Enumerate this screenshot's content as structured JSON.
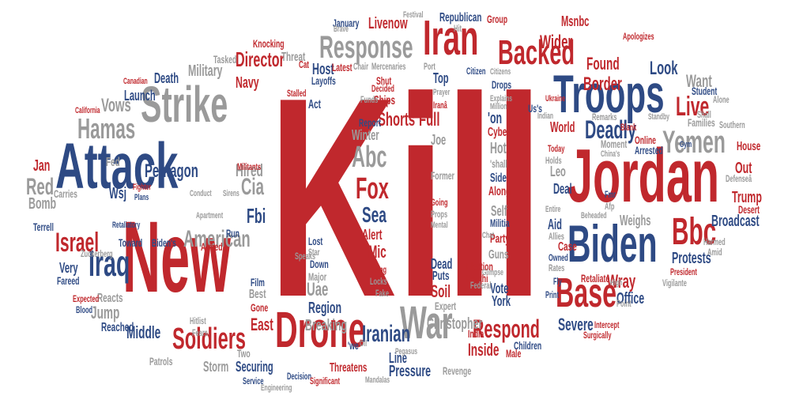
{
  "palette": {
    "red": "#c0282d",
    "blue": "#2e4a84",
    "gray": "#9a9a9a"
  },
  "words": [
    {
      "text": "Kill",
      "color": "r"
    },
    {
      "text": "Jordan",
      "color": "r"
    },
    {
      "text": "New",
      "color": "r"
    },
    {
      "text": "Attack",
      "color": "b"
    },
    {
      "text": "Troops",
      "color": "b"
    },
    {
      "text": "Biden",
      "color": "b"
    },
    {
      "text": "Drone",
      "color": "r"
    },
    {
      "text": "Strike",
      "color": "g"
    },
    {
      "text": "Iran",
      "color": "r"
    },
    {
      "text": "Backed",
      "color": "r"
    },
    {
      "text": "War",
      "color": "g"
    },
    {
      "text": "Response",
      "color": "g"
    },
    {
      "text": "Base",
      "color": "r"
    },
    {
      "text": "Yemen",
      "color": "g"
    },
    {
      "text": "Bbc",
      "color": "r"
    },
    {
      "text": "Iraq",
      "color": "b"
    },
    {
      "text": "Hamas",
      "color": "g"
    },
    {
      "text": "Israel",
      "color": "r"
    },
    {
      "text": "Soldiers",
      "color": "r"
    },
    {
      "text": "American",
      "color": "g"
    },
    {
      "text": "Fox",
      "color": "r"
    },
    {
      "text": "Abc",
      "color": "g"
    },
    {
      "text": "Border",
      "color": "r"
    },
    {
      "text": "Deadly",
      "color": "b"
    },
    {
      "text": "Live",
      "color": "r"
    },
    {
      "text": "Director",
      "color": "r"
    },
    {
      "text": "Pentagon",
      "color": "b"
    },
    {
      "text": "Vows",
      "color": "g"
    },
    {
      "text": "Respond",
      "color": "r"
    },
    {
      "text": "Iranian",
      "color": "b"
    },
    {
      "text": "Shorts",
      "color": "r"
    },
    {
      "text": "Full",
      "color": "r"
    },
    {
      "text": "Sea",
      "color": "b"
    },
    {
      "text": "Alert",
      "color": "r"
    },
    {
      "text": "Hired",
      "color": "g"
    },
    {
      "text": "Cia",
      "color": "g"
    },
    {
      "text": "Fbi",
      "color": "b"
    },
    {
      "text": "Look",
      "color": "b"
    },
    {
      "text": "Found",
      "color": "r"
    },
    {
      "text": "Want",
      "color": "g"
    },
    {
      "text": "Wider",
      "color": "r"
    },
    {
      "text": "Livenow",
      "color": "r"
    },
    {
      "text": "Red",
      "color": "g"
    },
    {
      "text": "Jan",
      "color": "r"
    },
    {
      "text": "Wsj",
      "color": "b"
    },
    {
      "text": "Middle",
      "color": "b"
    },
    {
      "text": "East",
      "color": "r"
    },
    {
      "text": "Severe",
      "color": "b"
    },
    {
      "text": "Inside",
      "color": "r"
    },
    {
      "text": "Navy",
      "color": "r"
    },
    {
      "text": "Military",
      "color": "g"
    },
    {
      "text": "Death",
      "color": "b"
    },
    {
      "text": "Launch",
      "color": "b"
    },
    {
      "text": "Host",
      "color": "b"
    },
    {
      "text": "Uae",
      "color": "g"
    },
    {
      "text": "Region",
      "color": "b"
    },
    {
      "text": "Breaking",
      "color": "g"
    },
    {
      "text": "Christopher",
      "color": "g"
    },
    {
      "text": "Pressure",
      "color": "b"
    },
    {
      "text": "Line",
      "color": "b"
    },
    {
      "text": "Mic",
      "color": "r"
    },
    {
      "text": "Soil",
      "color": "r"
    },
    {
      "text": "Vote",
      "color": "b"
    },
    {
      "text": "Wray",
      "color": "r"
    },
    {
      "text": "Office",
      "color": "b"
    },
    {
      "text": "Broadcast",
      "color": "b"
    },
    {
      "text": "Protests",
      "color": "b"
    },
    {
      "text": "Trump",
      "color": "r"
    },
    {
      "text": "Out",
      "color": "r"
    },
    {
      "text": "House",
      "color": "r"
    },
    {
      "text": "Aid",
      "color": "b"
    },
    {
      "text": "Weighs",
      "color": "g"
    },
    {
      "text": "Jump",
      "color": "g"
    },
    {
      "text": "Very",
      "color": "b"
    },
    {
      "text": "Reacts",
      "color": "g"
    },
    {
      "text": "Storm",
      "color": "g"
    },
    {
      "text": "Securing",
      "color": "b"
    },
    {
      "text": "Republican",
      "color": "b"
    },
    {
      "text": "Msnbc",
      "color": "r"
    },
    {
      "text": "Knocking",
      "color": "r"
    },
    {
      "text": "Threat",
      "color": "g"
    },
    {
      "text": "Chair",
      "color": "g"
    },
    {
      "text": "Mercenaries",
      "color": "g"
    },
    {
      "text": "Port",
      "color": "g"
    },
    {
      "text": "Cyber",
      "color": "r"
    },
    {
      "text": "Hot",
      "color": "g"
    },
    {
      "text": "Side",
      "color": "b"
    },
    {
      "text": "Along",
      "color": "r"
    },
    {
      "text": "Self",
      "color": "g"
    },
    {
      "text": "Party",
      "color": "r"
    },
    {
      "text": "Guns",
      "color": "g"
    },
    {
      "text": "York",
      "color": "b"
    },
    {
      "text": "Expert",
      "color": "g"
    },
    {
      "text": "Dead",
      "color": "b"
    },
    {
      "text": "Puts",
      "color": "b"
    },
    {
      "text": "Joe",
      "color": "g"
    },
    {
      "text": "Winter",
      "color": "g"
    },
    {
      "text": "Top",
      "color": "b"
    },
    {
      "text": "Drops",
      "color": "b"
    },
    {
      "text": "World",
      "color": "r"
    },
    {
      "text": "Leo",
      "color": "g"
    },
    {
      "text": "Deal",
      "color": "b"
    },
    {
      "text": "Case",
      "color": "r"
    },
    {
      "text": "Retaliate",
      "color": "r"
    },
    {
      "text": "Children",
      "color": "b"
    },
    {
      "text": "Revenge",
      "color": "g"
    },
    {
      "text": "Threatens",
      "color": "r"
    },
    {
      "text": "Decision",
      "color": "b"
    },
    {
      "text": "Act",
      "color": "b"
    },
    {
      "text": "Ships",
      "color": "r"
    },
    {
      "text": "Shut",
      "color": "r"
    },
    {
      "text": "Latest",
      "color": "r"
    },
    {
      "text": "Layoffs",
      "color": "b"
    },
    {
      "text": "Tasked",
      "color": "g"
    },
    {
      "text": "Carries",
      "color": "g"
    },
    {
      "text": "Bomb",
      "color": "g"
    },
    {
      "text": "Film",
      "color": "b"
    },
    {
      "text": "Best",
      "color": "g"
    },
    {
      "text": "Gone",
      "color": "r"
    },
    {
      "text": "Armed",
      "color": "r"
    },
    {
      "text": "Run",
      "color": "b"
    },
    {
      "text": "Militants",
      "color": "r"
    },
    {
      "text": "Fed",
      "color": "g"
    },
    {
      "text": "Major",
      "color": "g"
    },
    {
      "text": "Down",
      "color": "b"
    },
    {
      "text": "Patrols",
      "color": "g"
    },
    {
      "text": "Two",
      "color": "g"
    },
    {
      "text": "Reached",
      "color": "b"
    },
    {
      "text": "Toward",
      "color": "b"
    },
    {
      "text": "Biden's",
      "color": "b"
    },
    {
      "text": "Fareed",
      "color": "b"
    },
    {
      "text": "Zuckerberg",
      "color": "g"
    },
    {
      "text": "Terrell",
      "color": "b"
    },
    {
      "text": "Funds",
      "color": "g"
    },
    {
      "text": "Report",
      "color": "b"
    },
    {
      "text": "Former",
      "color": "g"
    },
    {
      "text": "Holds",
      "color": "g"
    },
    {
      "text": "Today",
      "color": "r"
    },
    {
      "text": "Online",
      "color": "r"
    },
    {
      "text": "Arrested",
      "color": "b"
    },
    {
      "text": "Families",
      "color": "g"
    },
    {
      "text": "Student",
      "color": "b"
    },
    {
      "text": "Moment",
      "color": "g"
    },
    {
      "text": "Apologizes",
      "color": "r"
    },
    {
      "text": "Group",
      "color": "r"
    },
    {
      "text": "January",
      "color": "b"
    },
    {
      "text": "'on",
      "color": "b"
    },
    {
      "text": "Us's",
      "color": "b"
    },
    {
      "text": "'shall",
      "color": "g"
    },
    {
      "text": "Militia",
      "color": "b"
    },
    {
      "text": "Going",
      "color": "r"
    },
    {
      "text": "Props",
      "color": "g"
    },
    {
      "text": "Doing",
      "color": "r"
    },
    {
      "text": "Locks",
      "color": "g"
    },
    {
      "text": "Fake",
      "color": "g"
    },
    {
      "text": "Fmr",
      "color": "b"
    },
    {
      "text": "Afp",
      "color": "g"
    },
    {
      "text": "India",
      "color": "r"
    },
    {
      "text": "Male",
      "color": "r"
    },
    {
      "text": "Election",
      "color": "r"
    },
    {
      "text": "Houthi",
      "color": "r"
    },
    {
      "text": "Federal",
      "color": "g"
    },
    {
      "text": "Hitlist",
      "color": "g"
    },
    {
      "text": "Fears",
      "color": "g"
    },
    {
      "text": "Lost",
      "color": "b"
    },
    {
      "text": "Star",
      "color": "g"
    },
    {
      "text": "Speaks",
      "color": "g"
    },
    {
      "text": "'we",
      "color": "b"
    },
    {
      "text": "Iranâ",
      "color": "r"
    },
    {
      "text": "Fly",
      "color": "b"
    },
    {
      "text": "Print",
      "color": "b"
    },
    {
      "text": "Harmed",
      "color": "g"
    },
    {
      "text": "Amid",
      "color": "g"
    },
    {
      "text": "President",
      "color": "r"
    },
    {
      "text": "Vigilante",
      "color": "g"
    },
    {
      "text": "Desert",
      "color": "r"
    },
    {
      "text": "Defenseâ",
      "color": "g"
    },
    {
      "text": "Alone",
      "color": "g"
    },
    {
      "text": "Shall",
      "color": "g"
    },
    {
      "text": "Southern",
      "color": "g"
    },
    {
      "text": "Brave",
      "color": "g"
    },
    {
      "text": "Hit",
      "color": "g"
    },
    {
      "text": "Festival",
      "color": "g"
    },
    {
      "text": "Citizens",
      "color": "g"
    },
    {
      "text": "Remarks",
      "color": "g"
    },
    {
      "text": "Blank",
      "color": "r"
    },
    {
      "text": "China's",
      "color": "g"
    },
    {
      "text": "Standby",
      "color": "g"
    },
    {
      "text": "Gym",
      "color": "b"
    },
    {
      "text": "Indian",
      "color": "g"
    },
    {
      "text": "Ukraine",
      "color": "r"
    },
    {
      "text": "Explains",
      "color": "g"
    },
    {
      "text": "Million",
      "color": "g"
    },
    {
      "text": "Significant",
      "color": "r"
    },
    {
      "text": "Service",
      "color": "b"
    },
    {
      "text": "Engineering",
      "color": "g"
    },
    {
      "text": "Mandalas",
      "color": "g"
    },
    {
      "text": "Surgically",
      "color": "r"
    },
    {
      "text": "Canadian",
      "color": "r"
    },
    {
      "text": "California",
      "color": "r"
    },
    {
      "text": "Expected",
      "color": "r"
    },
    {
      "text": "Blood",
      "color": "b"
    },
    {
      "text": "Retaliatory",
      "color": "b"
    },
    {
      "text": "Apartment",
      "color": "g"
    },
    {
      "text": "Conduct",
      "color": "g"
    },
    {
      "text": "Sirens",
      "color": "g"
    },
    {
      "text": "Plans",
      "color": "b"
    },
    {
      "text": "Fighter",
      "color": "r"
    },
    {
      "text": "Stalled",
      "color": "r"
    },
    {
      "text": "Decided",
      "color": "r"
    },
    {
      "text": "Citizen",
      "color": "b"
    },
    {
      "text": "High",
      "color": "g"
    },
    {
      "text": "Rates",
      "color": "g"
    },
    {
      "text": "Owned",
      "color": "b"
    },
    {
      "text": "Allies",
      "color": "g"
    },
    {
      "text": "Entire",
      "color": "g"
    },
    {
      "text": "Beheaded",
      "color": "g"
    },
    {
      "text": "Point",
      "color": "g"
    },
    {
      "text": "Intercept",
      "color": "r"
    },
    {
      "text": "Oil",
      "color": "g"
    },
    {
      "text": "Pegasus",
      "color": "g"
    },
    {
      "text": "Cat",
      "color": "r"
    },
    {
      "text": "Mental",
      "color": "g"
    },
    {
      "text": "Prayer",
      "color": "g"
    },
    {
      "text": "Chat",
      "color": "g"
    },
    {
      "text": "Glimpse",
      "color": "g"
    }
  ]
}
